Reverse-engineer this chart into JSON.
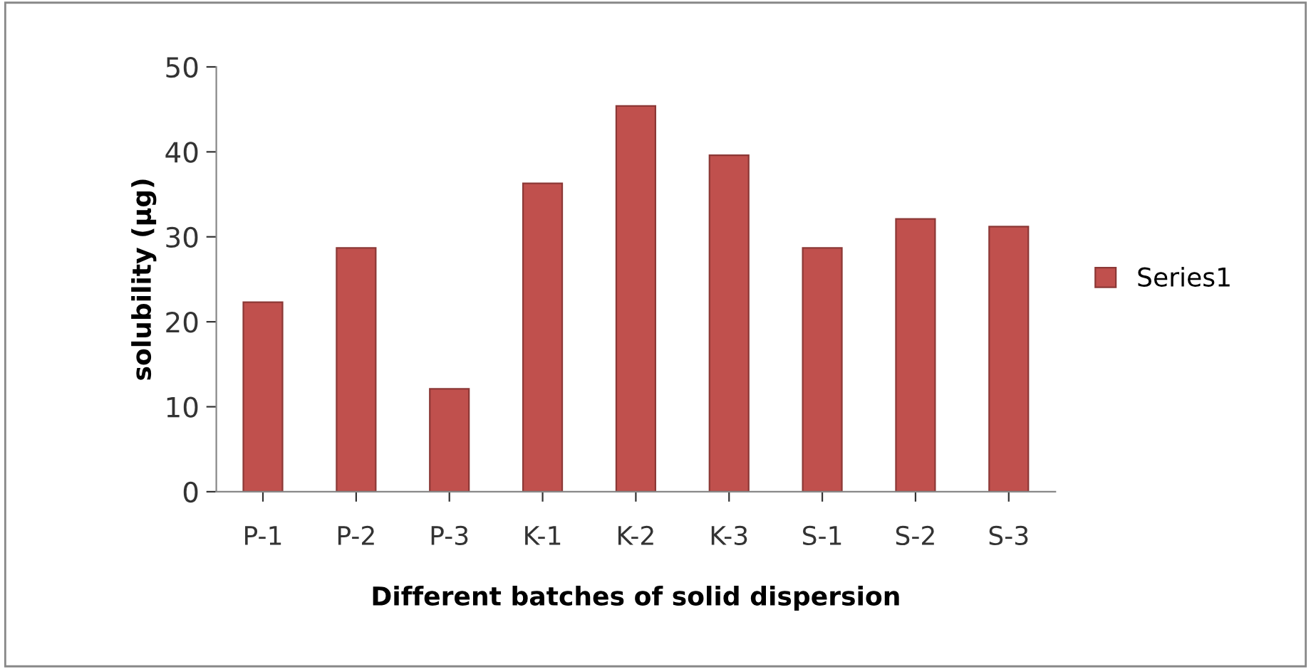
{
  "chart_data": {
    "type": "bar",
    "xlabel": "Different batches of solid dispersion",
    "ylabel": "solubility (µg)",
    "categories": [
      "P-1",
      "P-2",
      "P-3",
      "K-1",
      "K-2",
      "K-3",
      "S-1",
      "S-2",
      "S-3"
    ],
    "series": [
      {
        "name": "Series1",
        "color": "#c0504d",
        "values": [
          22.3,
          28.7,
          12.1,
          36.3,
          45.4,
          39.6,
          28.7,
          32.1,
          31.2
        ]
      }
    ],
    "ylim": [
      0,
      50
    ],
    "yticks": [
      0,
      10,
      20,
      30,
      40,
      50
    ],
    "grid": false,
    "legend": "right"
  }
}
